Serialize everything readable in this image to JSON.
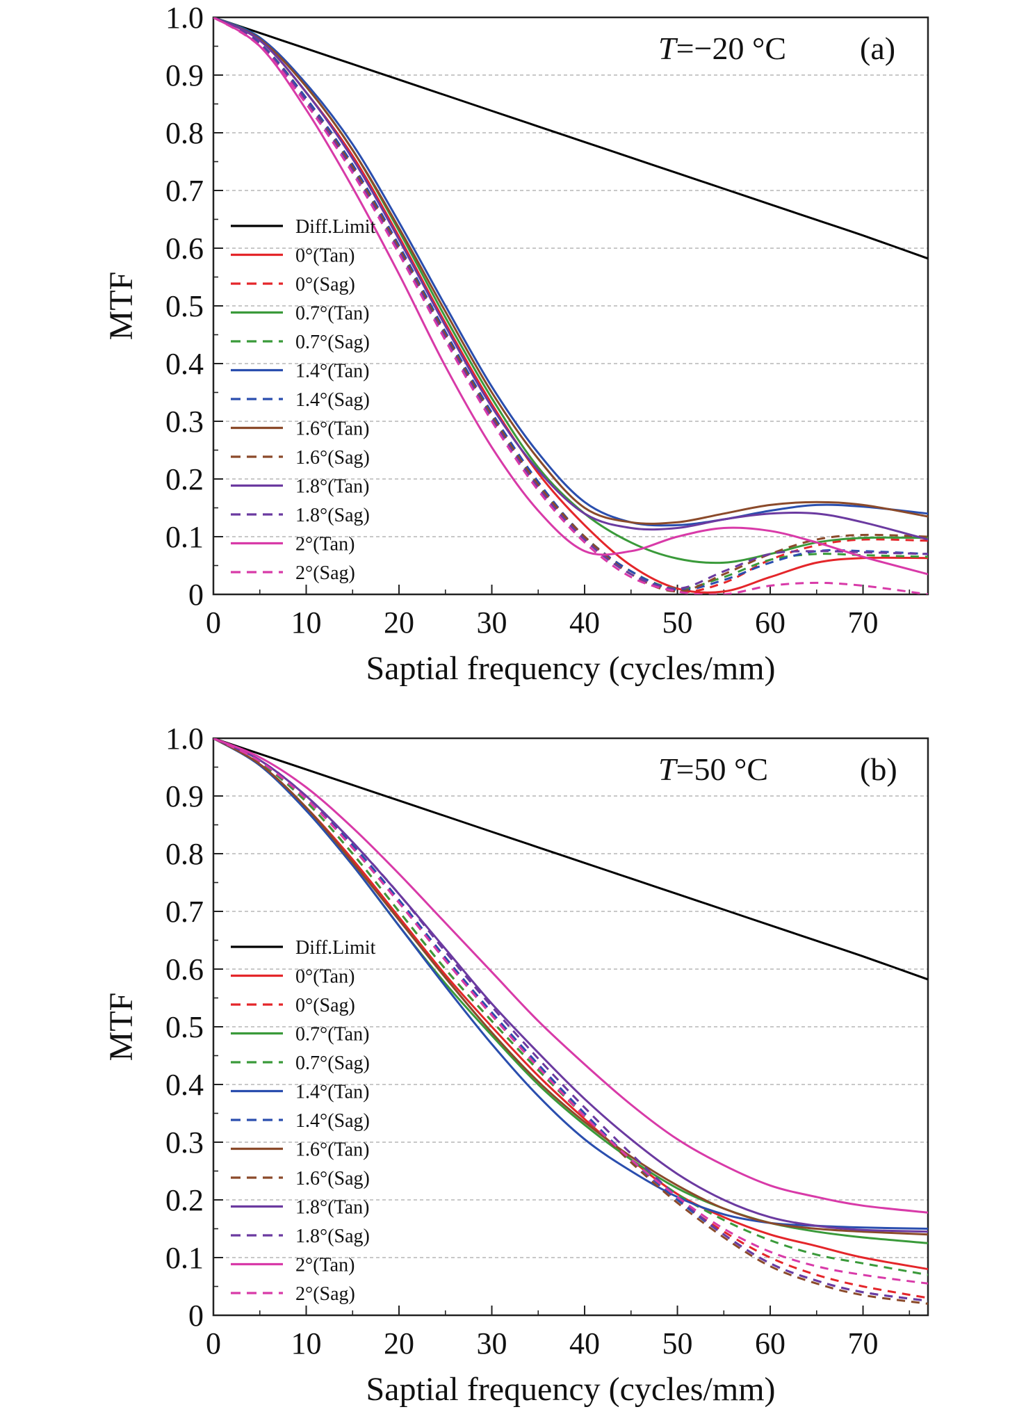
{
  "chart_data": [
    {
      "type": "line",
      "panel_label": "(a)",
      "annotation": {
        "var": "T",
        "value": "=−20 °C"
      },
      "xlabel": "Saptial frequency (cycles/mm)",
      "ylabel": "MTF",
      "xlim": [
        0,
        77
      ],
      "ylim": [
        0,
        1.0
      ],
      "xticks": [
        0,
        10,
        20,
        30,
        40,
        50,
        60,
        70
      ],
      "yticks": [
        0,
        0.1,
        0.2,
        0.3,
        0.4,
        0.5,
        0.6,
        0.7,
        0.8,
        0.9,
        1.0
      ],
      "ytick_labels": [
        "0",
        "0.1",
        "0.2",
        "0.3",
        "0.4",
        "0.5",
        "0.6",
        "0.7",
        "0.8",
        "0.9",
        "1.0"
      ],
      "grid": "horizontal-dashed",
      "legend_position": "center-left",
      "x": [
        0,
        5,
        10,
        15,
        20,
        25,
        30,
        35,
        40,
        45,
        50,
        55,
        60,
        65,
        70,
        77
      ],
      "series": [
        {
          "name": "Diff.Limit",
          "color": "#000000",
          "dash": false,
          "values": [
            1.0,
            0.973,
            0.946,
            0.919,
            0.892,
            0.865,
            0.838,
            0.811,
            0.784,
            0.757,
            0.73,
            0.703,
            0.676,
            0.649,
            0.622,
            0.582
          ]
        },
        {
          "name": "0°(Tan)",
          "color": "#e4262a",
          "dash": false,
          "values": [
            1.0,
            0.96,
            0.87,
            0.76,
            0.62,
            0.47,
            0.33,
            0.21,
            0.12,
            0.05,
            0.01,
            0.005,
            0.03,
            0.055,
            0.063,
            0.063
          ]
        },
        {
          "name": "0°(Sag)",
          "color": "#e4262a",
          "dash": true,
          "values": [
            1.0,
            0.955,
            0.86,
            0.74,
            0.6,
            0.45,
            0.31,
            0.19,
            0.1,
            0.04,
            0.005,
            0.02,
            0.06,
            0.085,
            0.095,
            0.093
          ]
        },
        {
          "name": "0.7°(Tan)",
          "color": "#3a9a3a",
          "dash": false,
          "values": [
            1.0,
            0.965,
            0.88,
            0.77,
            0.63,
            0.48,
            0.34,
            0.22,
            0.14,
            0.09,
            0.062,
            0.055,
            0.07,
            0.09,
            0.098,
            0.098
          ]
        },
        {
          "name": "0.7°(Sag)",
          "color": "#3a9a3a",
          "dash": true,
          "values": [
            1.0,
            0.955,
            0.86,
            0.74,
            0.6,
            0.45,
            0.31,
            0.19,
            0.1,
            0.04,
            0.01,
            0.03,
            0.06,
            0.07,
            0.068,
            0.065
          ]
        },
        {
          "name": "1.4°(Tan)",
          "color": "#2a4eae",
          "dash": false,
          "values": [
            1.0,
            0.965,
            0.885,
            0.78,
            0.645,
            0.5,
            0.36,
            0.245,
            0.16,
            0.125,
            0.12,
            0.13,
            0.145,
            0.155,
            0.152,
            0.14
          ]
        },
        {
          "name": "1.4°(Sag)",
          "color": "#2a4eae",
          "dash": true,
          "values": [
            1.0,
            0.955,
            0.86,
            0.745,
            0.605,
            0.455,
            0.315,
            0.195,
            0.1,
            0.04,
            0.008,
            0.025,
            0.055,
            0.075,
            0.075,
            0.07
          ]
        },
        {
          "name": "1.6°(Tan)",
          "color": "#8b4a2a",
          "dash": false,
          "values": [
            1.0,
            0.962,
            0.88,
            0.77,
            0.635,
            0.49,
            0.35,
            0.235,
            0.15,
            0.125,
            0.125,
            0.14,
            0.155,
            0.16,
            0.155,
            0.135
          ]
        },
        {
          "name": "1.6°(Sag)",
          "color": "#8b4a2a",
          "dash": true,
          "values": [
            1.0,
            0.953,
            0.855,
            0.74,
            0.6,
            0.45,
            0.31,
            0.19,
            0.1,
            0.035,
            0.005,
            0.035,
            0.07,
            0.095,
            0.103,
            0.1
          ]
        },
        {
          "name": "1.8°(Tan)",
          "color": "#6b3aa0",
          "dash": false,
          "values": [
            1.0,
            0.96,
            0.87,
            0.755,
            0.615,
            0.465,
            0.325,
            0.215,
            0.14,
            0.115,
            0.115,
            0.13,
            0.14,
            0.14,
            0.125,
            0.095
          ]
        },
        {
          "name": "1.8°(Sag)",
          "color": "#6b3aa0",
          "dash": true,
          "values": [
            1.0,
            0.953,
            0.855,
            0.735,
            0.595,
            0.445,
            0.305,
            0.185,
            0.095,
            0.035,
            0.01,
            0.04,
            0.07,
            0.075,
            0.073,
            0.07
          ]
        },
        {
          "name": "2°(Tan)",
          "color": "#d83aa8",
          "dash": false,
          "values": [
            1.0,
            0.95,
            0.84,
            0.705,
            0.555,
            0.395,
            0.255,
            0.145,
            0.075,
            0.075,
            0.1,
            0.115,
            0.11,
            0.09,
            0.065,
            0.035
          ]
        },
        {
          "name": "2°(Sag)",
          "color": "#d83aa8",
          "dash": true,
          "values": [
            1.0,
            0.95,
            0.85,
            0.73,
            0.59,
            0.44,
            0.3,
            0.18,
            0.09,
            0.03,
            0.005,
            0.0,
            0.015,
            0.02,
            0.015,
            0.0
          ]
        }
      ]
    },
    {
      "type": "line",
      "panel_label": "(b)",
      "annotation": {
        "var": "T",
        "value": "=50 °C"
      },
      "xlabel": "Saptial frequency (cycles/mm)",
      "ylabel": "MTF",
      "xlim": [
        0,
        77
      ],
      "ylim": [
        0,
        1.0
      ],
      "xticks": [
        0,
        10,
        20,
        30,
        40,
        50,
        60,
        70
      ],
      "yticks": [
        0,
        0.1,
        0.2,
        0.3,
        0.4,
        0.5,
        0.6,
        0.7,
        0.8,
        0.9,
        1.0
      ],
      "ytick_labels": [
        "0",
        "0.1",
        "0.2",
        "0.3",
        "0.4",
        "0.5",
        "0.6",
        "0.7",
        "0.8",
        "0.9",
        "1.0"
      ],
      "grid": "horizontal-dashed",
      "legend_position": "center-left",
      "x": [
        0,
        5,
        10,
        15,
        20,
        25,
        30,
        35,
        40,
        45,
        50,
        55,
        60,
        65,
        70,
        77
      ],
      "series": [
        {
          "name": "Diff.Limit",
          "color": "#000000",
          "dash": false,
          "values": [
            1.0,
            0.973,
            0.946,
            0.919,
            0.892,
            0.865,
            0.838,
            0.811,
            0.784,
            0.757,
            0.73,
            0.703,
            0.676,
            0.649,
            0.622,
            0.582
          ]
        },
        {
          "name": "0°(Tan)",
          "color": "#e4262a",
          "dash": false,
          "values": [
            1.0,
            0.955,
            0.88,
            0.79,
            0.69,
            0.59,
            0.5,
            0.415,
            0.34,
            0.27,
            0.21,
            0.17,
            0.14,
            0.12,
            0.1,
            0.08
          ]
        },
        {
          "name": "0°(Sag)",
          "color": "#e4262a",
          "dash": true,
          "values": [
            1.0,
            0.958,
            0.89,
            0.8,
            0.7,
            0.6,
            0.51,
            0.425,
            0.345,
            0.27,
            0.2,
            0.145,
            0.1,
            0.07,
            0.05,
            0.03
          ]
        },
        {
          "name": "0.7°(Tan)",
          "color": "#3a9a3a",
          "dash": false,
          "values": [
            1.0,
            0.953,
            0.875,
            0.78,
            0.675,
            0.575,
            0.485,
            0.4,
            0.33,
            0.27,
            0.22,
            0.185,
            0.16,
            0.145,
            0.135,
            0.125
          ]
        },
        {
          "name": "0.7°(Sag)",
          "color": "#3a9a3a",
          "dash": true,
          "values": [
            1.0,
            0.958,
            0.89,
            0.8,
            0.7,
            0.6,
            0.51,
            0.425,
            0.345,
            0.27,
            0.21,
            0.165,
            0.13,
            0.105,
            0.09,
            0.07
          ]
        },
        {
          "name": "1.4°(Tan)",
          "color": "#2a4eae",
          "dash": false,
          "values": [
            1.0,
            0.953,
            0.875,
            0.78,
            0.675,
            0.57,
            0.47,
            0.38,
            0.305,
            0.25,
            0.205,
            0.175,
            0.16,
            0.155,
            0.152,
            0.15
          ]
        },
        {
          "name": "1.4°(Sag)",
          "color": "#2a4eae",
          "dash": true,
          "values": [
            1.0,
            0.96,
            0.895,
            0.815,
            0.72,
            0.62,
            0.525,
            0.435,
            0.35,
            0.27,
            0.2,
            0.14,
            0.09,
            0.06,
            0.04,
            0.025
          ]
        },
        {
          "name": "1.6°(Tan)",
          "color": "#8b4a2a",
          "dash": false,
          "values": [
            1.0,
            0.955,
            0.88,
            0.785,
            0.685,
            0.585,
            0.49,
            0.405,
            0.335,
            0.275,
            0.225,
            0.185,
            0.16,
            0.15,
            0.145,
            0.14
          ]
        },
        {
          "name": "1.6°(Sag)",
          "color": "#8b4a2a",
          "dash": true,
          "values": [
            1.0,
            0.96,
            0.895,
            0.81,
            0.715,
            0.615,
            0.52,
            0.43,
            0.345,
            0.265,
            0.195,
            0.135,
            0.085,
            0.055,
            0.035,
            0.02
          ]
        },
        {
          "name": "1.8°(Tan)",
          "color": "#6b3aa0",
          "dash": false,
          "values": [
            1.0,
            0.962,
            0.9,
            0.82,
            0.73,
            0.635,
            0.54,
            0.455,
            0.375,
            0.305,
            0.245,
            0.2,
            0.17,
            0.155,
            0.148,
            0.145
          ]
        },
        {
          "name": "1.8°(Sag)",
          "color": "#6b3aa0",
          "dash": true,
          "values": [
            1.0,
            0.962,
            0.9,
            0.82,
            0.73,
            0.63,
            0.535,
            0.445,
            0.36,
            0.28,
            0.205,
            0.14,
            0.09,
            0.06,
            0.04,
            0.025
          ]
        },
        {
          "name": "2°(Tan)",
          "color": "#d83aa8",
          "dash": false,
          "values": [
            1.0,
            0.967,
            0.915,
            0.845,
            0.765,
            0.68,
            0.595,
            0.51,
            0.435,
            0.365,
            0.305,
            0.26,
            0.225,
            0.205,
            0.19,
            0.178
          ]
        },
        {
          "name": "2°(Sag)",
          "color": "#d83aa8",
          "dash": true,
          "values": [
            1.0,
            0.96,
            0.895,
            0.81,
            0.715,
            0.615,
            0.52,
            0.43,
            0.345,
            0.27,
            0.205,
            0.15,
            0.11,
            0.085,
            0.07,
            0.055
          ]
        }
      ]
    }
  ]
}
